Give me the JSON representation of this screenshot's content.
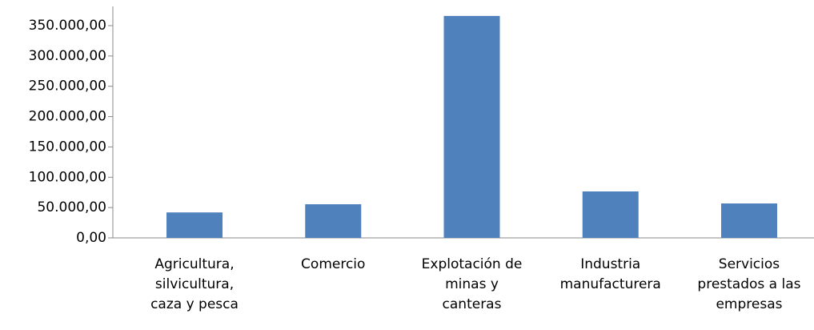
{
  "chart_data": {
    "type": "bar",
    "categories": [
      "Agricultura,\nsilvicultura,\ncaza y pesca",
      "Comercio",
      "Explotación de\nminas y\ncanteras",
      "Industria\nmanufacturera",
      "Servicios\nprestados a las\nempresas"
    ],
    "values": [
      42000,
      55500,
      366000,
      76600,
      56800
    ],
    "color": "#4f81bd",
    "ylim": [
      0,
      380000
    ],
    "yticks": [
      {
        "value": 0,
        "label": "0,00"
      },
      {
        "value": 50000,
        "label": "50.000,00"
      },
      {
        "value": 100000,
        "label": "100.000,00"
      },
      {
        "value": 150000,
        "label": "150.000,00"
      },
      {
        "value": 200000,
        "label": "200.000,00"
      },
      {
        "value": 250000,
        "label": "250.000,00"
      },
      {
        "value": 300000,
        "label": "300.000,00"
      },
      {
        "value": 350000,
        "label": "350.000,00"
      }
    ],
    "grid": false
  }
}
